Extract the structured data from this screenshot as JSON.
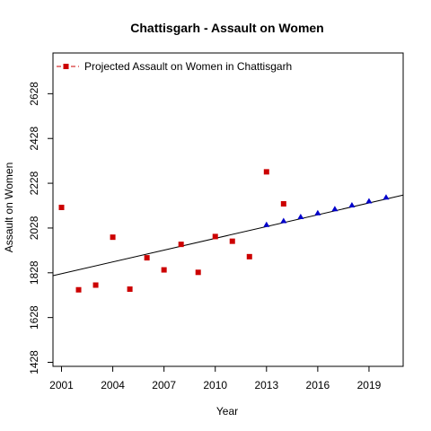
{
  "chart_data": {
    "type": "scatter",
    "title": "Chattisgarh  -  Assault on Women",
    "xlabel": "Year",
    "ylabel": "Assault on Women",
    "xlim": [
      2000.5,
      2021.0
    ],
    "ylim": [
      1410,
      2810
    ],
    "x_ticks": [
      2001,
      2004,
      2007,
      2010,
      2013,
      2016,
      2019
    ],
    "y_ticks": [
      1428,
      1628,
      1828,
      2028,
      2228,
      2428,
      2628
    ],
    "legend": {
      "position": "top-left",
      "label": "Projected  Assault on Women  in  Chattisgarh"
    },
    "series": [
      {
        "marker": "square",
        "color": "#cc0000",
        "points": [
          [
            2001,
            2120
          ],
          [
            2002,
            1752
          ],
          [
            2003,
            1773
          ],
          [
            2004,
            1987
          ],
          [
            2005,
            1755
          ],
          [
            2006,
            1895
          ],
          [
            2007,
            1841
          ],
          [
            2008,
            1955
          ],
          [
            2009,
            1830
          ],
          [
            2010,
            1990
          ],
          [
            2011,
            1969
          ],
          [
            2012,
            1900
          ],
          [
            2013,
            2279
          ],
          [
            2014,
            2136
          ]
        ]
      },
      {
        "marker": "triangle",
        "color": "#0000cc",
        "points": [
          [
            2013,
            2043
          ],
          [
            2014,
            2060
          ],
          [
            2015,
            2078
          ],
          [
            2016,
            2095
          ],
          [
            2017,
            2113
          ],
          [
            2018,
            2130
          ],
          [
            2019,
            2148
          ],
          [
            2020,
            2165
          ]
        ]
      }
    ],
    "trend_line": {
      "x": [
        2000.5,
        2021.0
      ],
      "y": [
        1815,
        2175
      ],
      "color": "#000000"
    }
  }
}
